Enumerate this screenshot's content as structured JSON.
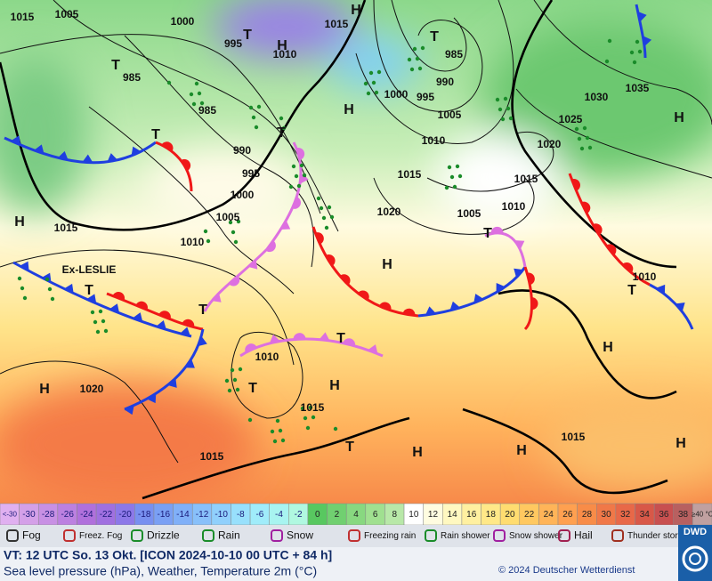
{
  "map": {
    "labels": [
      "1015",
      "1005",
      "1000",
      "995",
      "T",
      "H",
      "1010",
      "1015",
      "H",
      "T",
      "985",
      "990",
      "995",
      "1000",
      "1005",
      "H",
      "T",
      "985",
      "985",
      "T",
      "990",
      "995",
      "1000",
      "1005",
      "T",
      "1030",
      "1035",
      "H",
      "1025",
      "1020",
      "1010",
      "1015",
      "1015",
      "1010",
      "1020",
      "1005",
      "T",
      "H",
      "H",
      "1015",
      "1010",
      "Ex-LESLIE",
      "T",
      "T",
      "T",
      "1010",
      "T",
      "H",
      "H",
      "1010",
      "T",
      "H",
      "1020",
      "1015",
      "1015",
      "H",
      "H",
      "T",
      "1015",
      "H"
    ]
  },
  "legend": {
    "scale": [
      {
        "label": "<-30",
        "color": "#e0b0f0"
      },
      {
        "label": "-30",
        "color": "#d4a0e8"
      },
      {
        "label": "-28",
        "color": "#c890e4"
      },
      {
        "label": "-26",
        "color": "#bc80e0"
      },
      {
        "label": "-24",
        "color": "#b070dc"
      },
      {
        "label": "-22",
        "color": "#a070e0"
      },
      {
        "label": "-20",
        "color": "#8c78e8"
      },
      {
        "label": "-18",
        "color": "#7890f0"
      },
      {
        "label": "-16",
        "color": "#7aa0f4"
      },
      {
        "label": "-14",
        "color": "#80b0f8"
      },
      {
        "label": "-12",
        "color": "#88c0fa"
      },
      {
        "label": "-10",
        "color": "#90d0fc"
      },
      {
        "label": "-8",
        "color": "#98e0fc"
      },
      {
        "label": "-6",
        "color": "#a0ecfa"
      },
      {
        "label": "-4",
        "color": "#a8f4f0"
      },
      {
        "label": "-2",
        "color": "#b0f8e0"
      },
      {
        "label": "0",
        "color": "#58c860"
      },
      {
        "label": "2",
        "color": "#70d070"
      },
      {
        "label": "4",
        "color": "#88d880"
      },
      {
        "label": "6",
        "color": "#a0e090"
      },
      {
        "label": "8",
        "color": "#b8e8a8"
      },
      {
        "label": "10",
        "color": "#ffffff"
      },
      {
        "label": "12",
        "color": "#fffce0"
      },
      {
        "label": "14",
        "color": "#fff8c0"
      },
      {
        "label": "16",
        "color": "#fff0a0"
      },
      {
        "label": "18",
        "color": "#ffe888"
      },
      {
        "label": "20",
        "color": "#ffdc70"
      },
      {
        "label": "22",
        "color": "#ffc860"
      },
      {
        "label": "24",
        "color": "#ffb458"
      },
      {
        "label": "26",
        "color": "#ffa050"
      },
      {
        "label": "28",
        "color": "#f88c48"
      },
      {
        "label": "30",
        "color": "#f07848"
      },
      {
        "label": "32",
        "color": "#e86848"
      },
      {
        "label": "34",
        "color": "#d85848"
      },
      {
        "label": "36",
        "color": "#c85050"
      },
      {
        "label": "38",
        "color": "#b86060"
      },
      {
        "label": "≥40 °C",
        "color": "#c0a0a0"
      }
    ],
    "weather": [
      "Fog",
      "Freez. Fog",
      "Drizzle",
      "Rain",
      "Snow",
      "Freezing rain",
      "Rain shower",
      "Snow shower",
      "Hail",
      "Thunder storm"
    ]
  },
  "footer": {
    "valid_time": "VT: 12 UTC So.  13 Okt. [ICON 2024-10-10  00 UTC + 84 h]",
    "caption": "Sea level pressure (hPa), Weather, Temperature 2m (°C)",
    "copyright": "© 2024 Deutscher Wetterdienst",
    "logo": "DWD"
  }
}
